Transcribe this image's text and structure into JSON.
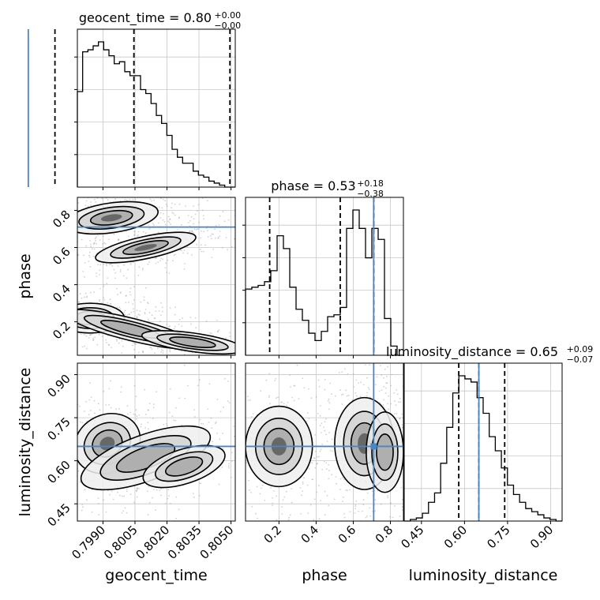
{
  "chart_data": {
    "type": "corner",
    "parameters": [
      "geocent_time",
      "phase",
      "luminosity_distance"
    ],
    "truths": [
      0.7955,
      0.71,
      0.65
    ],
    "truth_color": "#4a86c0",
    "titles": [
      {
        "text": "geocent_time = 0.80",
        "sup": "+0.00",
        "sub": "−0.00"
      },
      {
        "text": "phase = 0.53",
        "sup": "+0.18",
        "sub": "−0.38"
      },
      {
        "text": "luminosity_distance = 0.65",
        "sup": "+0.09",
        "sub": "−0.07"
      }
    ],
    "quantiles": [
      [
        0.79675,
        0.80045,
        0.80495
      ],
      [
        0.15,
        0.53,
        0.71
      ],
      [
        0.58,
        0.65,
        0.74
      ]
    ],
    "ranges": [
      [
        0.7978,
        0.8052
      ],
      [
        0.02,
        0.87
      ],
      [
        0.39,
        0.94
      ]
    ],
    "ticks": [
      [
        "0.7990",
        "0.8005",
        "0.8020",
        "0.8035",
        "0.8050"
      ],
      [
        "0.2",
        "0.4",
        "0.6",
        "0.8"
      ],
      [
        "0.45",
        "0.60",
        "0.75",
        "0.90"
      ]
    ],
    "histograms": [
      {
        "edges_from": 0.7978,
        "edges_to": 0.8052,
        "counts": [
          0.48,
          0.68,
          0.69,
          0.71,
          0.73,
          0.69,
          0.66,
          0.62,
          0.63,
          0.58,
          0.56,
          0.56,
          0.49,
          0.47,
          0.42,
          0.36,
          0.32,
          0.26,
          0.19,
          0.15,
          0.12,
          0.12,
          0.08,
          0.06,
          0.05,
          0.03,
          0.02,
          0.01,
          0.0,
          0.0
        ]
      },
      {
        "edges_from": 0.02,
        "edges_to": 0.87,
        "counts": [
          0.36,
          0.37,
          0.38,
          0.4,
          0.46,
          0.65,
          0.58,
          0.37,
          0.25,
          0.19,
          0.12,
          0.08,
          0.13,
          0.21,
          0.22,
          0.26,
          0.69,
          0.79,
          0.69,
          0.53,
          0.69,
          0.63,
          0.2,
          0.05,
          0.0
        ]
      },
      {
        "edges_from": 0.39,
        "edges_to": 0.94,
        "counts": [
          0.0,
          0.01,
          0.02,
          0.05,
          0.12,
          0.18,
          0.37,
          0.6,
          0.82,
          0.93,
          0.91,
          0.89,
          0.79,
          0.69,
          0.54,
          0.45,
          0.34,
          0.23,
          0.17,
          0.12,
          0.08,
          0.06,
          0.04,
          0.02,
          0.01,
          0.0
        ]
      }
    ],
    "density_blobs": [
      {
        "x": 0,
        "y": 1,
        "blobs": [
          {
            "cx": 0.7994,
            "cy": 0.76,
            "sx": 0.0011,
            "sy": 0.04,
            "rot": -8,
            "w": 0.9
          },
          {
            "cx": 0.801,
            "cy": 0.6,
            "sx": 0.0012,
            "sy": 0.03,
            "rot": -12,
            "w": 0.9
          },
          {
            "cx": 0.7984,
            "cy": 0.22,
            "sx": 0.0008,
            "sy": 0.04,
            "rot": 0,
            "w": 0.9
          },
          {
            "cx": 0.8003,
            "cy": 0.16,
            "sx": 0.0016,
            "sy": 0.03,
            "rot": 14,
            "w": 0.7
          },
          {
            "cx": 0.8032,
            "cy": 0.09,
            "sx": 0.0012,
            "sy": 0.025,
            "rot": 8,
            "w": 0.55
          }
        ]
      },
      {
        "x": 0,
        "y": 2,
        "blobs": [
          {
            "cx": 0.7992,
            "cy": 0.66,
            "sx": 0.0008,
            "sy": 0.05,
            "rot": -28,
            "w": 0.9
          },
          {
            "cx": 0.801,
            "cy": 0.61,
            "sx": 0.0016,
            "sy": 0.04,
            "rot": -20,
            "w": 0.75
          },
          {
            "cx": 0.8028,
            "cy": 0.58,
            "sx": 0.001,
            "sy": 0.03,
            "rot": -18,
            "w": 0.4
          }
        ]
      },
      {
        "x": 1,
        "y": 2,
        "blobs": [
          {
            "cx": 0.2,
            "cy": 0.65,
            "sx": 0.09,
            "sy": 0.07,
            "rot": 0,
            "w": 0.9
          },
          {
            "cx": 0.66,
            "cy": 0.66,
            "sx": 0.08,
            "sy": 0.08,
            "rot": 0,
            "w": 0.9
          },
          {
            "cx": 0.77,
            "cy": 0.63,
            "sx": 0.05,
            "sy": 0.07,
            "rot": 0,
            "w": 0.7
          }
        ]
      }
    ]
  }
}
